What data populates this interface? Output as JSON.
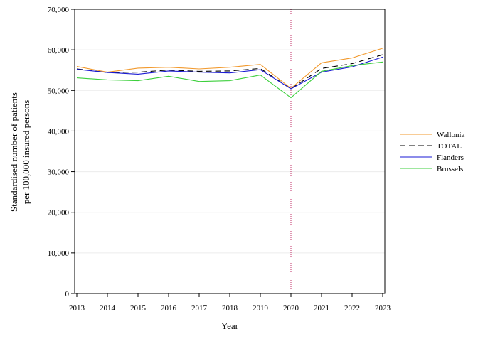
{
  "chart_data": {
    "type": "line",
    "xlabel": "Year",
    "ylabel_lines": [
      "Standardised number of patients",
      "per 100,000 insured persons"
    ],
    "x": [
      2013,
      2014,
      2015,
      2016,
      2017,
      2018,
      2019,
      2020,
      2021,
      2022,
      2023
    ],
    "xtick_labels": [
      "2013",
      "2014",
      "2015",
      "2016",
      "2017",
      "2018",
      "2019",
      "2020",
      "2021",
      "2022",
      "2023"
    ],
    "ylim": [
      0,
      70000
    ],
    "yticks": [
      0,
      10000,
      20000,
      30000,
      40000,
      50000,
      60000,
      70000
    ],
    "ytick_labels": [
      "0",
      "10,000",
      "20,000",
      "30,000",
      "40,000",
      "50,000",
      "60,000",
      "70,000"
    ],
    "grid": true,
    "reference_line": {
      "x": 2020,
      "color": "#c0306a",
      "style": "dotted"
    },
    "legend_position": "right",
    "series": [
      {
        "name": "Wallonia",
        "color": "#f29a2e",
        "dash": "none",
        "values": [
          55900,
          54500,
          55500,
          55700,
          55300,
          55700,
          56400,
          50500,
          56800,
          58000,
          60400
        ]
      },
      {
        "name": "TOTAL",
        "color": "#000000",
        "dash": "8,5",
        "values": [
          55300,
          54400,
          54500,
          55000,
          54700,
          54800,
          55400,
          50400,
          55400,
          56600,
          58800
        ]
      },
      {
        "name": "Flanders",
        "color": "#1a1ad4",
        "dash": "none",
        "values": [
          55200,
          54400,
          54000,
          54800,
          54500,
          54300,
          55100,
          50400,
          54500,
          55800,
          58200
        ]
      },
      {
        "name": "Brussels",
        "color": "#3ccf3c",
        "dash": "none",
        "values": [
          53100,
          52600,
          52400,
          53500,
          52200,
          52400,
          53800,
          48200,
          54700,
          56100,
          57000
        ]
      }
    ]
  }
}
